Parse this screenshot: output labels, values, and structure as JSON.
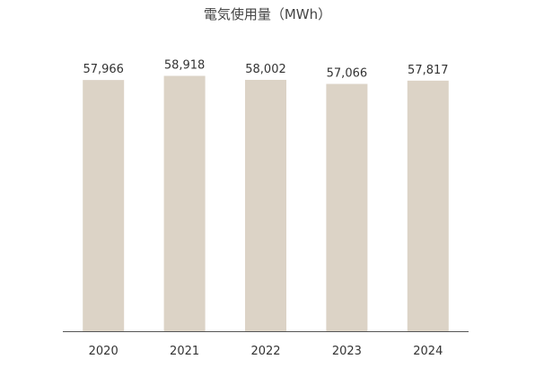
{
  "chart_data": {
    "type": "bar",
    "title": "電気使用量（MWh）",
    "categories": [
      "2020",
      "2021",
      "2022",
      "2023",
      "2024"
    ],
    "values": [
      57966,
      58918,
      58002,
      57066,
      57817
    ],
    "value_labels": [
      "57,966",
      "58,918",
      "58,002",
      "57,066",
      "57,817"
    ],
    "xlabel": "",
    "ylabel": "",
    "ylim": [
      0,
      64000
    ],
    "grid": false,
    "legend": "none",
    "bar_color": "#dcd3c6",
    "axis_color": "#555555"
  }
}
